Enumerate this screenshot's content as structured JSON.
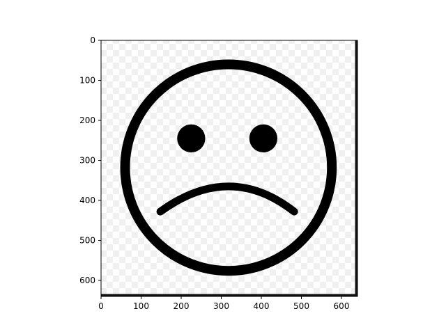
{
  "chart_data": {
    "type": "image",
    "title": "",
    "xlabel": "",
    "ylabel": "",
    "xlim": [
      0,
      640
    ],
    "ylim": [
      640,
      0
    ],
    "x_ticks": [
      0,
      100,
      200,
      300,
      400,
      500,
      600
    ],
    "y_ticks": [
      0,
      100,
      200,
      300,
      400,
      500,
      600
    ],
    "grid": false,
    "image_content": {
      "subject": "sad-face-icon",
      "face_center": [
        318,
        318
      ],
      "face_radius": 258,
      "left_eye_center": [
        225,
        245
      ],
      "right_eye_center": [
        405,
        245
      ],
      "eye_radius": 35,
      "mouth_left_end": [
        148,
        428
      ],
      "mouth_right_end": [
        482,
        428
      ],
      "mouth_top": [
        318,
        365
      ],
      "image_bottom_edge_row": 634,
      "image_right_edge_col": 634
    },
    "colors": {
      "ink": "#000000",
      "checker_light": "#ffffff",
      "checker_dark": "#f0f0f0",
      "edge_band": "#111111"
    }
  }
}
